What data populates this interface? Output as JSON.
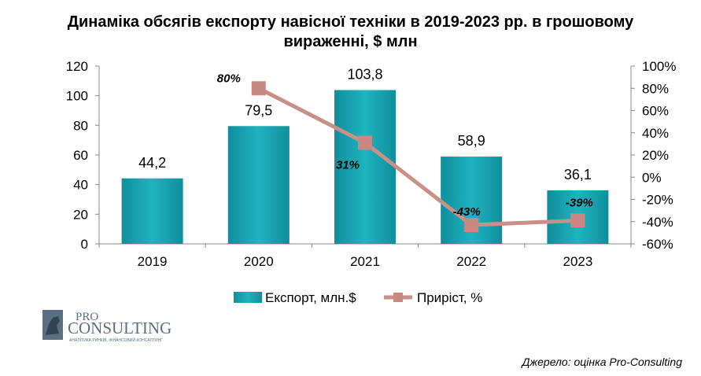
{
  "title_line1": "Динаміка обсягів експорту навісної техніки в 2019-2023 рр. в грошовому",
  "title_line2": "вираженні, $ млн",
  "source": "Джерело: оцінка Pro-Consulting",
  "logo": {
    "text_top": "PRO",
    "text_main": "CONSULTING",
    "tagline": "АНАЛІТИКА РИНКІВ, ФІНАНСОВИЙ КОНСАЛТИНГ"
  },
  "colors": {
    "bar": "#1aa5b3",
    "bar_dark": "#0e7d88",
    "line": "#c89088",
    "marker": "#c98880"
  },
  "chart_data": {
    "type": "bar",
    "categories": [
      "2019",
      "2020",
      "2021",
      "2022",
      "2023"
    ],
    "series": [
      {
        "name": "Експорт, млн.$",
        "type": "bar",
        "axis": "left",
        "values": [
          44.2,
          79.5,
          103.8,
          58.9,
          36.1
        ],
        "labels": [
          "44,2",
          "79,5",
          "103,8",
          "58,9",
          "36,1"
        ]
      },
      {
        "name": "Приріст, %",
        "type": "line",
        "axis": "right",
        "values": [
          null,
          80,
          31,
          -43,
          -39
        ],
        "labels": [
          "",
          "80%",
          "31%",
          "-43%",
          "-39%"
        ]
      }
    ],
    "ylim_left": [
      0,
      120
    ],
    "yticks_left": [
      "0",
      "20",
      "40",
      "60",
      "80",
      "100",
      "120"
    ],
    "ylim_right": [
      -60,
      100
    ],
    "yticks_right": [
      "-60%",
      "-40%",
      "-20%",
      "0%",
      "20%",
      "40%",
      "60%",
      "80%",
      "100%"
    ],
    "grid": false,
    "legend": "bottom"
  }
}
